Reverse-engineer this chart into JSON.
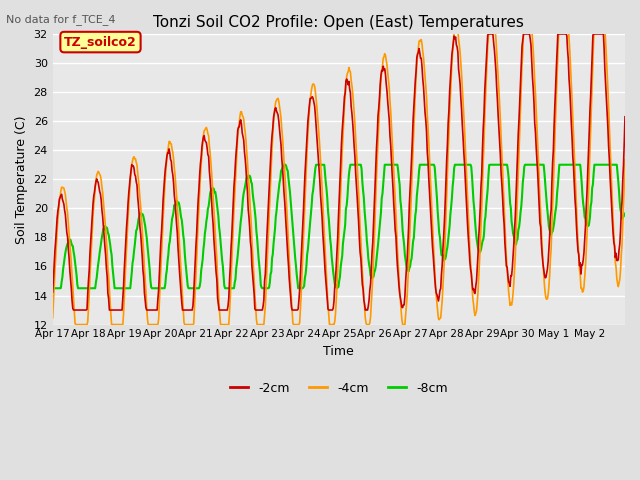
{
  "title": "Tonzi Soil CO2 Profile: Open (East) Temperatures",
  "subtitle": "No data for f_TCE_4",
  "ylabel": "Soil Temperature (C)",
  "xlabel": "Time",
  "ylim": [
    12,
    32
  ],
  "yticks": [
    12,
    14,
    16,
    18,
    20,
    22,
    24,
    26,
    28,
    30,
    32
  ],
  "xtick_labels": [
    "Apr 17",
    "Apr 18",
    "Apr 19",
    "Apr 20",
    "Apr 21",
    "Apr 22",
    "Apr 23",
    "Apr 24",
    "Apr 25",
    "Apr 26",
    "Apr 27",
    "Apr 28",
    "Apr 29",
    "Apr 30",
    "May 1",
    "May 2"
  ],
  "legend_labels": [
    "-2cm",
    "-4cm",
    "-8cm"
  ],
  "legend_colors": [
    "#cc0000",
    "#ff9900",
    "#00cc00"
  ],
  "line_colors": [
    "#cc0000",
    "#ff9900",
    "#00cc00"
  ],
  "annotation_text": "TZ_soilco2",
  "annotation_color": "#cc0000",
  "annotation_bg": "#ffff99",
  "annotation_border": "#cc0000",
  "bg_color": "#e0e0e0",
  "plot_bg": "#e8e8e8"
}
